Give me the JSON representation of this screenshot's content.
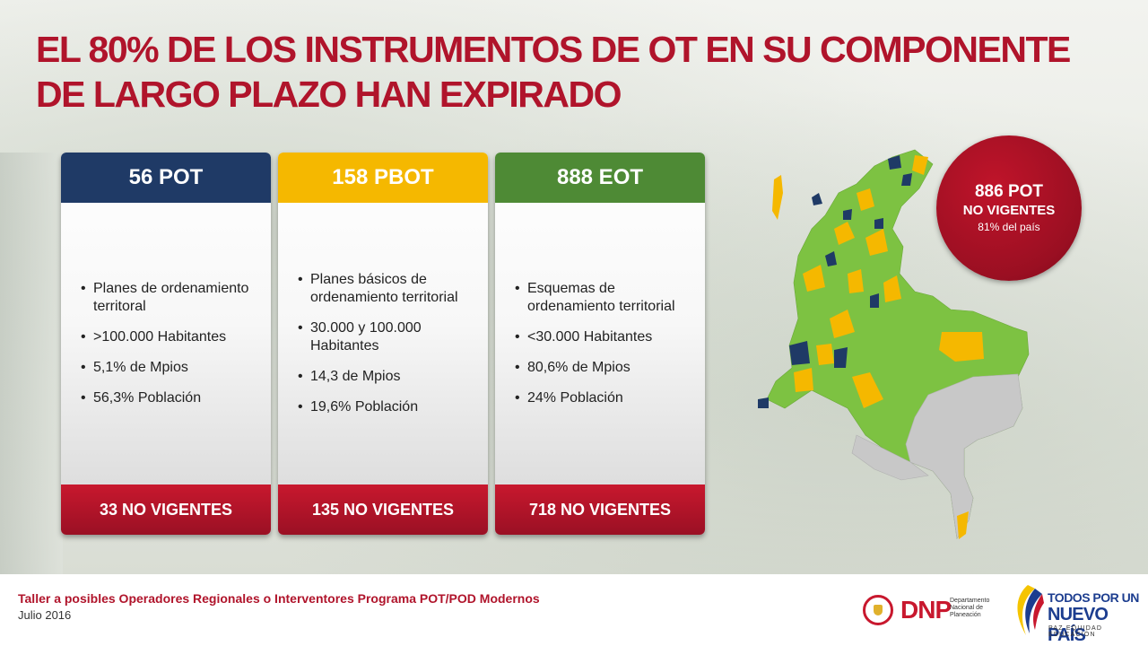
{
  "title": "EL 80% DE LOS INSTRUMENTOS DE OT EN SU COMPONENTE DE LARGO PLAZO HAN EXPIRADO",
  "cards": [
    {
      "header": "56 POT",
      "header_color": "#1f3a66",
      "items": [
        "Planes de ordenamiento territoral",
        ">100.000 Habitantes",
        "5,1% de Mpios",
        "56,3% Población"
      ],
      "footer": "33 NO VIGENTES"
    },
    {
      "header": "158 PBOT",
      "header_color": "#f5b800",
      "items": [
        "Planes básicos de ordenamiento territorial",
        "30.000 y 100.000 Habitantes",
        "14,3 de Mpios",
        "19,6% Población"
      ],
      "footer": "135 NO VIGENTES"
    },
    {
      "header": "888 EOT",
      "header_color": "#4e8a35",
      "items": [
        "Esquemas de ordenamiento territorial",
        "<30.000 Habitantes",
        "80,6% de Mpios",
        "24% Población"
      ],
      "footer": "718 NO VIGENTES"
    }
  ],
  "badge": {
    "line1": "886 POT",
    "line2": "NO VIGENTES",
    "line3": "81% del país"
  },
  "map_colors": {
    "eot": "#7dc242",
    "pbot": "#f5b800",
    "pot": "#1f3a66",
    "no_data": "#c8c8c8"
  },
  "footer": {
    "title": "Taller a posibles Operadores Regionales o Interventores Programa POT/POD Modernos",
    "date": "Julio 2016"
  },
  "logos": {
    "dnp": "DNP",
    "dnp_sub": "Departamento Nacional de Planeación",
    "tpn_line1": "TODOS POR UN",
    "tpn_line2": "NUEVO PAÍS",
    "tpn_line3": "PAZ  EQUIDAD  EDUCACIÓN"
  }
}
